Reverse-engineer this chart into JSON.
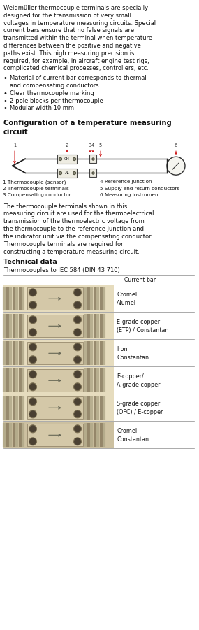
{
  "bg_color": "#ffffff",
  "intro_lines": [
    "Weidmüller thermocouple terminals are specially",
    "designed for the transmission of very small",
    "voltages in temperature measuring circuits. Special",
    "current bars ensure that no false signals are",
    "transmitted within the terminal when temperature",
    "differences between the positive and negative",
    "paths exist. This high measuring precision is",
    "required, for example, in aircraft engine test rigs,",
    "complicated chemical processes, controllers, etc."
  ],
  "bullets": [
    [
      "Material of current bar corresponds to thermal",
      true
    ],
    [
      "and compensating conductors",
      false
    ],
    [
      "Clear thermocouple marking",
      true
    ],
    [
      "2-pole blocks per thermocouple",
      true
    ],
    [
      "Modular width 10 mm",
      true
    ]
  ],
  "section_title": [
    "Configuration of a temperature measuring",
    "circuit"
  ],
  "legend_lines": [
    [
      "1 Thermocouple (sensor)",
      "4 Reference junction"
    ],
    [
      "2 Thermocouple terminals",
      "5 Supply and return conductors"
    ],
    [
      "3 Compensating conductor",
      "6 Measuring instrument"
    ]
  ],
  "para2_lines": [
    "The thermocouple terminals shown in this",
    "measuring circuit are used for the thermoelectrical",
    "transmission of the thermoelectric voltage from",
    "the thermocouple to the reference junction and",
    "the indicator unit via the compensating conductor.",
    "Thermocouple terminals are required for",
    "constructing a temperature measuring circuit."
  ],
  "tech_title": "Technical data",
  "tech_sub": "Thermocouples to IEC 584 (DIN 43 710)",
  "col_header": "Current bar",
  "table_rows": [
    {
      "label": "Cromel\nAlumel"
    },
    {
      "label": "E-grade copper\n(ETP) / Constantan"
    },
    {
      "label": "Iron\nConstantan"
    },
    {
      "label": "E-copper/\nA-grade copper"
    },
    {
      "label": "S-grade copper\n(OFC) / E-copper"
    },
    {
      "label": "Cromel-\nConstantan"
    }
  ],
  "row_bg": "#e6dcbe",
  "row_bg_last": "#ccc0a0",
  "fin_color": "#b0a888",
  "fin_color2": "#8a7c60",
  "dot_outer": "#7a6e52",
  "dot_inner": "#4a4032",
  "center_bg": "#d4c8a8",
  "center_line": "#8a7c60",
  "fs_main": 6.0,
  "lh_main": 10.8,
  "fs_legend": 5.2,
  "lh_legend": 9.5
}
